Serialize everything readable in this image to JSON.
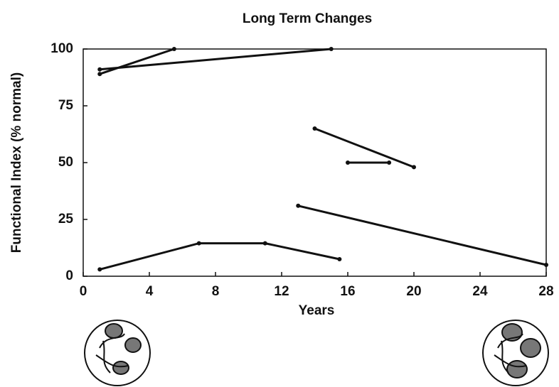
{
  "chart_data": {
    "type": "line",
    "title": "Long Term Changes",
    "x_label": "Years",
    "y_label": "Functional Index (% normal)",
    "xlim": [
      0,
      28
    ],
    "xticks": [
      0,
      4,
      8,
      12,
      16,
      20,
      24,
      28
    ],
    "ylim": [
      0,
      100
    ],
    "yticks": [
      0,
      25,
      50,
      75,
      100
    ],
    "series": [
      {
        "color": "#111111",
        "x": [
          1,
          5.5
        ],
        "values": [
          89,
          100
        ]
      },
      {
        "color": "#111111",
        "x": [
          1,
          15
        ],
        "values": [
          91,
          100
        ]
      },
      {
        "color": "#111111",
        "x": [
          14,
          20
        ],
        "values": [
          65,
          48
        ]
      },
      {
        "color": "#111111",
        "x": [
          16,
          18.5
        ],
        "values": [
          50,
          50
        ]
      },
      {
        "color": "#111111",
        "x": [
          13,
          28
        ],
        "values": [
          31,
          5
        ]
      },
      {
        "color": "#111111",
        "x": [
          1,
          7,
          11,
          15.5
        ],
        "values": [
          3,
          14.5,
          14.5,
          7.5
        ]
      }
    ]
  }
}
